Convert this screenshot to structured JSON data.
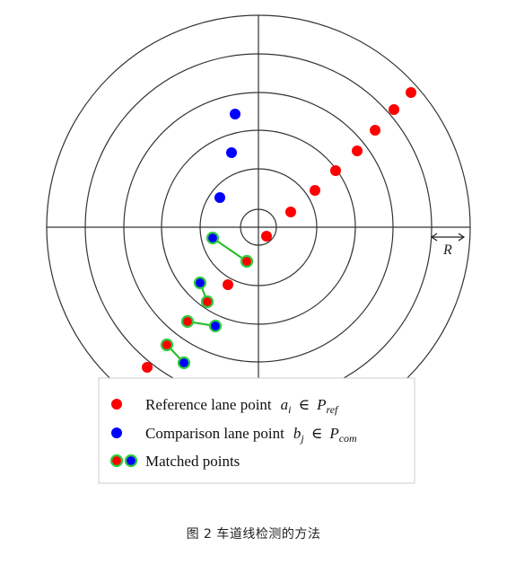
{
  "diagram": {
    "radius_label": "R",
    "colors": {
      "reference": "#ff0000",
      "comparison": "#0000ff",
      "match_line": "#22bb22",
      "match_halo": "#2ecc40",
      "rings": "#333333"
    }
  },
  "legend": {
    "reference": {
      "text": "Reference lane point",
      "var": "a",
      "var_sub": "i",
      "set": "P",
      "set_sub": "ref"
    },
    "comparison": {
      "text": "Comparison lane point",
      "var": "b",
      "var_sub": "j",
      "set": "P",
      "set_sub": "com"
    },
    "matched": {
      "text": "Matched points"
    },
    "element_of": "∈"
  },
  "caption": "图 2 车道线检测的方法"
}
